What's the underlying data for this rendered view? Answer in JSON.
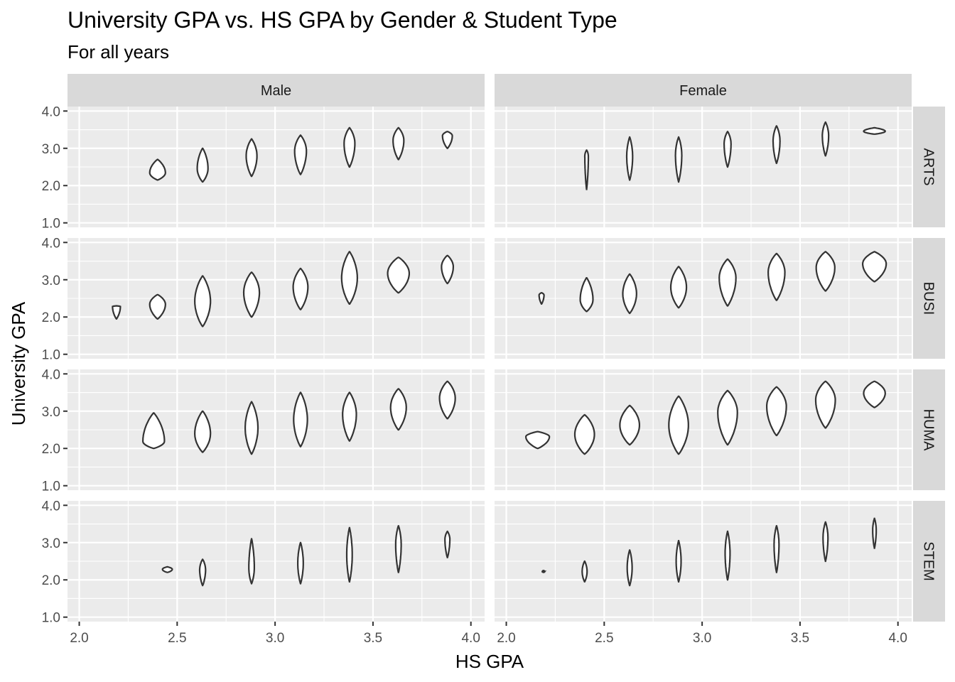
{
  "chart_data": {
    "type": "violin",
    "title": "University GPA vs. HS GPA by Gender & Student Type",
    "subtitle": "For all years",
    "xlabel": "HS GPA",
    "ylabel": "University GPA",
    "xlim": [
      1.94,
      4.07
    ],
    "ylim": [
      0.88,
      4.12
    ],
    "x_ticks": [
      "2.0",
      "2.5",
      "3.0",
      "3.5",
      "4.0"
    ],
    "y_ticks": [
      "1.0",
      "2.0",
      "3.0",
      "4.0"
    ],
    "columns": [
      "Male",
      "Female"
    ],
    "rows": [
      "ARTS",
      "BUSI",
      "HUMA",
      "STEM"
    ],
    "facets": [
      {
        "gender": "Male",
        "type": "ARTS",
        "violins": [
          {
            "x": 2.4,
            "ymin": 2.15,
            "ymax": 2.7,
            "width": 0.08,
            "peak": 0.35
          },
          {
            "x": 2.63,
            "ymin": 2.1,
            "ymax": 3.0,
            "width": 0.055,
            "peak": 0.4
          },
          {
            "x": 2.88,
            "ymin": 2.25,
            "ymax": 3.25,
            "width": 0.055,
            "peak": 0.55
          },
          {
            "x": 3.13,
            "ymin": 2.3,
            "ymax": 3.35,
            "width": 0.06,
            "peak": 0.6
          },
          {
            "x": 3.38,
            "ymin": 2.5,
            "ymax": 3.55,
            "width": 0.055,
            "peak": 0.6
          },
          {
            "x": 3.63,
            "ymin": 2.7,
            "ymax": 3.55,
            "width": 0.055,
            "peak": 0.6
          },
          {
            "x": 3.88,
            "ymin": 3.0,
            "ymax": 3.45,
            "width": 0.05,
            "peak": 0.75
          }
        ]
      },
      {
        "gender": "Female",
        "type": "ARTS",
        "violins": [
          {
            "x": 2.41,
            "ymin": 1.9,
            "ymax": 2.95,
            "width": 0.018,
            "peak": 0.85
          },
          {
            "x": 2.63,
            "ymin": 2.15,
            "ymax": 3.3,
            "width": 0.03,
            "peak": 0.55
          },
          {
            "x": 2.88,
            "ymin": 2.1,
            "ymax": 3.3,
            "width": 0.032,
            "peak": 0.6
          },
          {
            "x": 3.13,
            "ymin": 2.5,
            "ymax": 3.45,
            "width": 0.035,
            "peak": 0.65
          },
          {
            "x": 3.38,
            "ymin": 2.6,
            "ymax": 3.6,
            "width": 0.035,
            "peak": 0.6
          },
          {
            "x": 3.63,
            "ymin": 2.8,
            "ymax": 3.7,
            "width": 0.032,
            "peak": 0.6
          },
          {
            "x": 3.88,
            "ymin": 3.38,
            "ymax": 3.55,
            "width": 0.11,
            "peak": 0.45
          }
        ]
      },
      {
        "gender": "Male",
        "type": "BUSI",
        "violins": [
          {
            "x": 2.19,
            "ymin": 1.95,
            "ymax": 2.3,
            "width": 0.04,
            "peak": 0.95
          },
          {
            "x": 2.4,
            "ymin": 1.95,
            "ymax": 2.6,
            "width": 0.08,
            "peak": 0.6
          },
          {
            "x": 2.63,
            "ymin": 1.75,
            "ymax": 3.1,
            "width": 0.08,
            "peak": 0.5
          },
          {
            "x": 2.88,
            "ymin": 2.0,
            "ymax": 3.2,
            "width": 0.08,
            "peak": 0.55
          },
          {
            "x": 3.13,
            "ymin": 2.2,
            "ymax": 3.3,
            "width": 0.075,
            "peak": 0.55
          },
          {
            "x": 3.38,
            "ymin": 2.35,
            "ymax": 3.75,
            "width": 0.08,
            "peak": 0.5
          },
          {
            "x": 3.63,
            "ymin": 2.65,
            "ymax": 3.6,
            "width": 0.11,
            "peak": 0.55
          },
          {
            "x": 3.88,
            "ymin": 2.9,
            "ymax": 3.65,
            "width": 0.06,
            "peak": 0.6
          }
        ]
      },
      {
        "gender": "Female",
        "type": "BUSI",
        "violins": [
          {
            "x": 2.18,
            "ymin": 2.35,
            "ymax": 2.65,
            "width": 0.025,
            "peak": 0.8
          },
          {
            "x": 2.41,
            "ymin": 2.15,
            "ymax": 3.05,
            "width": 0.065,
            "peak": 0.35
          },
          {
            "x": 2.63,
            "ymin": 2.1,
            "ymax": 3.15,
            "width": 0.07,
            "peak": 0.5
          },
          {
            "x": 2.88,
            "ymin": 2.25,
            "ymax": 3.35,
            "width": 0.08,
            "peak": 0.5
          },
          {
            "x": 3.13,
            "ymin": 2.3,
            "ymax": 3.55,
            "width": 0.085,
            "peak": 0.6
          },
          {
            "x": 3.38,
            "ymin": 2.45,
            "ymax": 3.7,
            "width": 0.085,
            "peak": 0.6
          },
          {
            "x": 3.63,
            "ymin": 2.7,
            "ymax": 3.75,
            "width": 0.095,
            "peak": 0.6
          },
          {
            "x": 3.88,
            "ymin": 2.95,
            "ymax": 3.75,
            "width": 0.12,
            "peak": 0.6
          }
        ]
      },
      {
        "gender": "Male",
        "type": "HUMA",
        "violins": [
          {
            "x": 2.38,
            "ymin": 2.0,
            "ymax": 2.95,
            "width": 0.11,
            "peak": 0.2
          },
          {
            "x": 2.63,
            "ymin": 1.9,
            "ymax": 3.0,
            "width": 0.08,
            "peak": 0.45
          },
          {
            "x": 2.88,
            "ymin": 1.85,
            "ymax": 3.25,
            "width": 0.065,
            "peak": 0.5
          },
          {
            "x": 3.13,
            "ymin": 2.05,
            "ymax": 3.5,
            "width": 0.07,
            "peak": 0.5
          },
          {
            "x": 3.38,
            "ymin": 2.2,
            "ymax": 3.5,
            "width": 0.07,
            "peak": 0.55
          },
          {
            "x": 3.63,
            "ymin": 2.5,
            "ymax": 3.6,
            "width": 0.08,
            "peak": 0.55
          },
          {
            "x": 3.88,
            "ymin": 2.8,
            "ymax": 3.8,
            "width": 0.08,
            "peak": 0.55
          }
        ]
      },
      {
        "gender": "Female",
        "type": "HUMA",
        "violins": [
          {
            "x": 2.16,
            "ymin": 2.0,
            "ymax": 2.45,
            "width": 0.12,
            "peak": 0.7
          },
          {
            "x": 2.4,
            "ymin": 1.85,
            "ymax": 2.9,
            "width": 0.1,
            "peak": 0.5
          },
          {
            "x": 2.63,
            "ymin": 2.1,
            "ymax": 3.15,
            "width": 0.1,
            "peak": 0.5
          },
          {
            "x": 2.88,
            "ymin": 1.85,
            "ymax": 3.4,
            "width": 0.1,
            "peak": 0.5
          },
          {
            "x": 3.13,
            "ymin": 2.1,
            "ymax": 3.55,
            "width": 0.1,
            "peak": 0.6
          },
          {
            "x": 3.38,
            "ymin": 2.35,
            "ymax": 3.65,
            "width": 0.1,
            "peak": 0.6
          },
          {
            "x": 3.63,
            "ymin": 2.55,
            "ymax": 3.8,
            "width": 0.1,
            "peak": 0.6
          },
          {
            "x": 3.88,
            "ymin": 3.1,
            "ymax": 3.8,
            "width": 0.11,
            "peak": 0.55
          }
        ]
      },
      {
        "gender": "Male",
        "type": "STEM",
        "violins": [
          {
            "x": 2.45,
            "ymin": 2.2,
            "ymax": 2.35,
            "width": 0.05,
            "peak": 0.55
          },
          {
            "x": 2.63,
            "ymin": 1.85,
            "ymax": 2.55,
            "width": 0.03,
            "peak": 0.6
          },
          {
            "x": 2.88,
            "ymin": 1.9,
            "ymax": 3.1,
            "width": 0.028,
            "peak": 0.35
          },
          {
            "x": 3.13,
            "ymin": 1.9,
            "ymax": 3.0,
            "width": 0.028,
            "peak": 0.5
          },
          {
            "x": 3.38,
            "ymin": 1.95,
            "ymax": 3.4,
            "width": 0.028,
            "peak": 0.5
          },
          {
            "x": 3.63,
            "ymin": 2.2,
            "ymax": 3.45,
            "width": 0.028,
            "peak": 0.6
          },
          {
            "x": 3.88,
            "ymin": 2.6,
            "ymax": 3.3,
            "width": 0.025,
            "peak": 0.7
          }
        ]
      },
      {
        "gender": "Female",
        "type": "STEM",
        "violins": [
          {
            "x": 2.19,
            "ymin": 2.2,
            "ymax": 2.25,
            "width": 0.012,
            "peak": 0.5
          },
          {
            "x": 2.4,
            "ymin": 1.95,
            "ymax": 2.5,
            "width": 0.025,
            "peak": 0.5
          },
          {
            "x": 2.63,
            "ymin": 1.85,
            "ymax": 2.8,
            "width": 0.025,
            "peak": 0.5
          },
          {
            "x": 2.88,
            "ymin": 1.95,
            "ymax": 3.05,
            "width": 0.025,
            "peak": 0.5
          },
          {
            "x": 3.13,
            "ymin": 2.0,
            "ymax": 3.3,
            "width": 0.025,
            "peak": 0.55
          },
          {
            "x": 3.38,
            "ymin": 2.2,
            "ymax": 3.45,
            "width": 0.025,
            "peak": 0.6
          },
          {
            "x": 3.63,
            "ymin": 2.5,
            "ymax": 3.55,
            "width": 0.025,
            "peak": 0.6
          },
          {
            "x": 3.88,
            "ymin": 2.85,
            "ymax": 3.65,
            "width": 0.018,
            "peak": 0.6
          }
        ]
      }
    ]
  }
}
